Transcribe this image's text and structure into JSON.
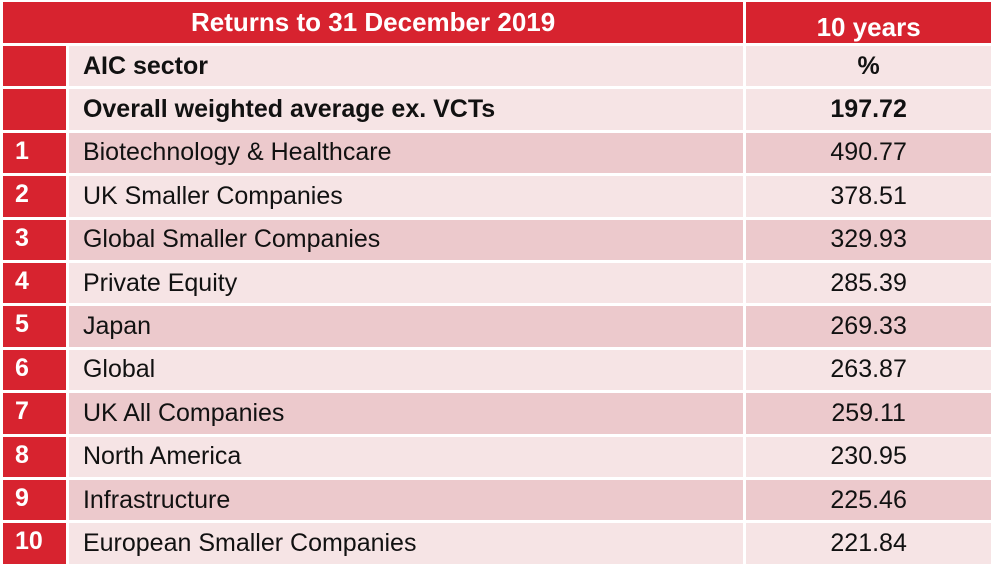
{
  "colors": {
    "header_red": "#d7232f",
    "row_dark": "#ecc9cc",
    "row_light": "#f6e4e5",
    "header_text": "#ffffff"
  },
  "header": {
    "title": "Returns to 31 December 2019",
    "period": "10 years"
  },
  "subheader": {
    "sector_label": "AIC sector",
    "unit": "%"
  },
  "average": {
    "label": "Overall weighted average ex. VCTs",
    "value": "197.72"
  },
  "rows": [
    {
      "rank": "1",
      "sector": "Biotechnology & Healthcare",
      "value": "490.77"
    },
    {
      "rank": "2",
      "sector": "UK Smaller Companies",
      "value": "378.51"
    },
    {
      "rank": "3",
      "sector": "Global Smaller Companies",
      "value": "329.93"
    },
    {
      "rank": "4",
      "sector": "Private Equity",
      "value": "285.39"
    },
    {
      "rank": "5",
      "sector": "Japan",
      "value": "269.33"
    },
    {
      "rank": "6",
      "sector": "Global",
      "value": "263.87"
    },
    {
      "rank": "7",
      "sector": "UK All Companies",
      "value": "259.11"
    },
    {
      "rank": "8",
      "sector": "North America",
      "value": "230.95"
    },
    {
      "rank": "9",
      "sector": "Infrastructure",
      "value": "225.46"
    },
    {
      "rank": "10",
      "sector": "European Smaller Companies",
      "value": "221.84"
    }
  ]
}
